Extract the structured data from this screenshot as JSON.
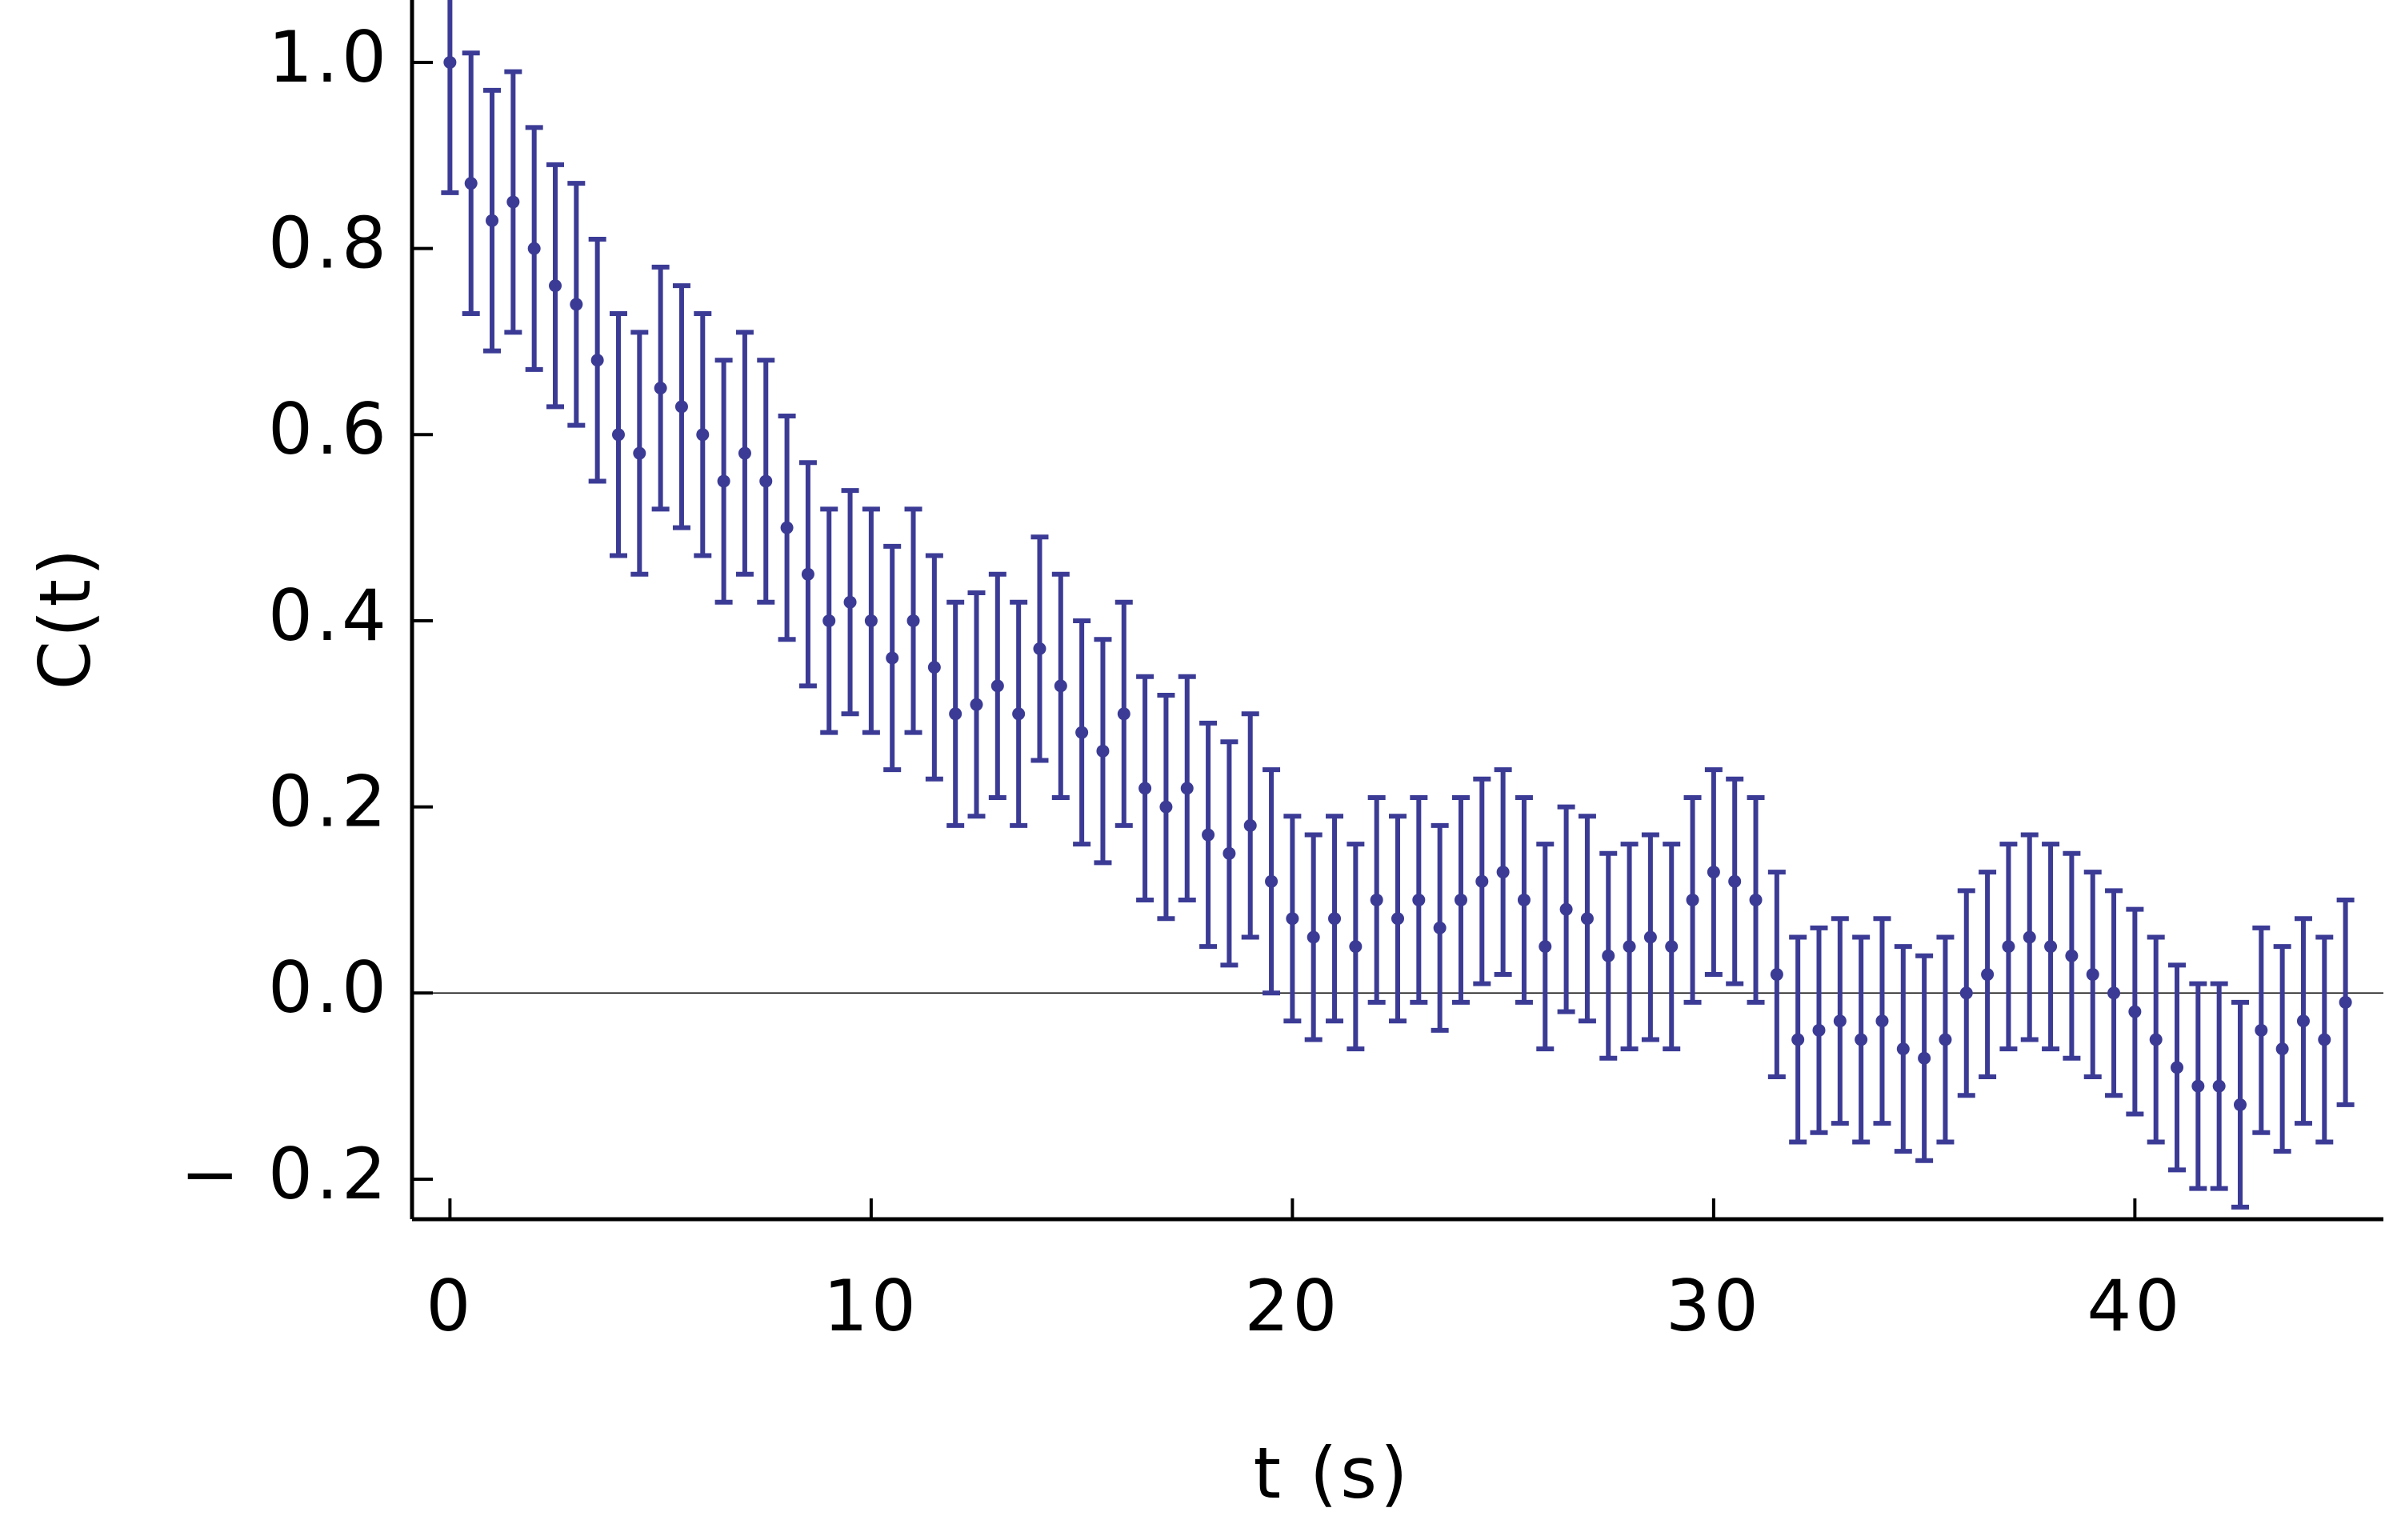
{
  "chart_data": {
    "type": "errorbar",
    "xlabel": "t (s)",
    "ylabel": "C(t)",
    "color": "#3b3b96",
    "xlim": [
      -0.9,
      45.9
    ],
    "ylim": [
      -0.243,
      1.067
    ],
    "xticks": [
      0,
      10,
      20,
      30,
      40
    ],
    "yticks": [
      {
        "value": -0.2,
        "label": "− 0.2"
      },
      {
        "value": 0.0,
        "label": "0.0"
      },
      0.2,
      0.4,
      0.6,
      0.8,
      {
        "value": 1.0,
        "label": "1.0"
      }
    ],
    "zero_line": true,
    "x": [
      0,
      0.5,
      1,
      1.5,
      2,
      2.5,
      3,
      3.5,
      4,
      4.5,
      5,
      5.5,
      6,
      6.5,
      7,
      7.5,
      8,
      8.5,
      9,
      9.5,
      10,
      10.5,
      11,
      11.5,
      12,
      12.5,
      13,
      13.5,
      14,
      14.5,
      15,
      15.5,
      16,
      16.5,
      17,
      17.5,
      18,
      18.5,
      19,
      19.5,
      20,
      20.5,
      21,
      21.5,
      22,
      22.5,
      23,
      23.5,
      24,
      24.5,
      25,
      25.5,
      26,
      26.5,
      27,
      27.5,
      28,
      28.5,
      29,
      29.5,
      30,
      30.5,
      31,
      31.5,
      32,
      32.5,
      33,
      33.5,
      34,
      34.5,
      35,
      35.5,
      36,
      36.5,
      37,
      37.5,
      38,
      38.5,
      39,
      39.5,
      40,
      40.5,
      41,
      41.5,
      42,
      42.5,
      43,
      43.5,
      44,
      44.5,
      45
    ],
    "values": [
      1.0,
      0.87,
      0.83,
      0.85,
      0.8,
      0.76,
      0.74,
      0.68,
      0.6,
      0.58,
      0.65,
      0.63,
      0.6,
      0.55,
      0.58,
      0.55,
      0.5,
      0.45,
      0.4,
      0.42,
      0.4,
      0.36,
      0.4,
      0.35,
      0.3,
      0.31,
      0.33,
      0.3,
      0.37,
      0.33,
      0.28,
      0.26,
      0.3,
      0.22,
      0.2,
      0.22,
      0.17,
      0.15,
      0.18,
      0.12,
      0.08,
      0.06,
      0.08,
      0.05,
      0.1,
      0.08,
      0.1,
      0.07,
      0.1,
      0.12,
      0.13,
      0.1,
      0.05,
      0.09,
      0.08,
      0.04,
      0.05,
      0.06,
      0.05,
      0.1,
      0.13,
      0.12,
      0.1,
      0.02,
      -0.05,
      -0.04,
      -0.03,
      -0.05,
      -0.03,
      -0.06,
      -0.07,
      -0.05,
      0.0,
      0.02,
      0.05,
      0.06,
      0.05,
      0.04,
      0.02,
      0.0,
      -0.02,
      -0.05,
      -0.08,
      -0.1,
      -0.1,
      -0.12,
      -0.04,
      -0.06,
      -0.03,
      -0.05,
      -0.01
    ],
    "errors": [
      0.14,
      0.14,
      0.14,
      0.14,
      0.13,
      0.13,
      0.13,
      0.13,
      0.13,
      0.13,
      0.13,
      0.13,
      0.13,
      0.13,
      0.13,
      0.13,
      0.12,
      0.12,
      0.12,
      0.12,
      0.12,
      0.12,
      0.12,
      0.12,
      0.12,
      0.12,
      0.12,
      0.12,
      0.12,
      0.12,
      0.12,
      0.12,
      0.12,
      0.12,
      0.12,
      0.12,
      0.12,
      0.12,
      0.12,
      0.12,
      0.11,
      0.11,
      0.11,
      0.11,
      0.11,
      0.11,
      0.11,
      0.11,
      0.11,
      0.11,
      0.11,
      0.11,
      0.11,
      0.11,
      0.11,
      0.11,
      0.11,
      0.11,
      0.11,
      0.11,
      0.11,
      0.11,
      0.11,
      0.11,
      0.11,
      0.11,
      0.11,
      0.11,
      0.11,
      0.11,
      0.11,
      0.11,
      0.11,
      0.11,
      0.11,
      0.11,
      0.11,
      0.11,
      0.11,
      0.11,
      0.11,
      0.11,
      0.11,
      0.11,
      0.11,
      0.11,
      0.11,
      0.11,
      0.11,
      0.11,
      0.11
    ]
  }
}
